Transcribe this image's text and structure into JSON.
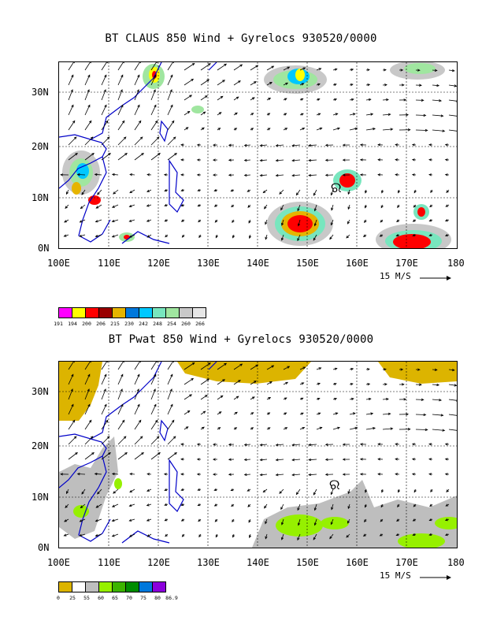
{
  "panel1": {
    "title": "BT CLAUS 850 Wind + Gyrelocs 930520/0000",
    "lat_labels": [
      "30N",
      "20N",
      "10N",
      "0N"
    ],
    "lon_labels": [
      "100E",
      "110E",
      "120E",
      "130E",
      "140E",
      "150E",
      "160E",
      "170E",
      "180"
    ],
    "ref_vector": "15 M/S",
    "colorbar": {
      "colors": [
        "#ff00ff",
        "#ffff00",
        "#ff0000",
        "#990000",
        "#e6b400",
        "#0078dc",
        "#00c8ff",
        "#78e6be",
        "#a0e6a0",
        "#c8c8c8",
        "#e6e6e6"
      ],
      "labels": [
        "191",
        "194",
        "200",
        "206",
        "215",
        "230",
        "242",
        "248",
        "254",
        "260",
        "266"
      ]
    }
  },
  "panel2": {
    "title": "BT Pwat 850 Wind + Gyrelocs 930520/0000",
    "lat_labels": [
      "30N",
      "20N",
      "10N",
      "0N"
    ],
    "lon_labels": [
      "100E",
      "110E",
      "120E",
      "130E",
      "140E",
      "150E",
      "160E",
      "170E",
      "180"
    ],
    "ref_vector": "15 M/S",
    "colorbar": {
      "colors": [
        "#dcb400",
        "#ffffff",
        "#bebebe",
        "#96f000",
        "#3cb400",
        "#008c00",
        "#0078dc",
        "#8c00dc"
      ],
      "labels": [
        "0",
        "25",
        "55",
        "60",
        "65",
        "70",
        "75",
        "80",
        "86.9"
      ]
    }
  },
  "colors": {
    "coast": "#0000c8",
    "grid": "#000000"
  }
}
